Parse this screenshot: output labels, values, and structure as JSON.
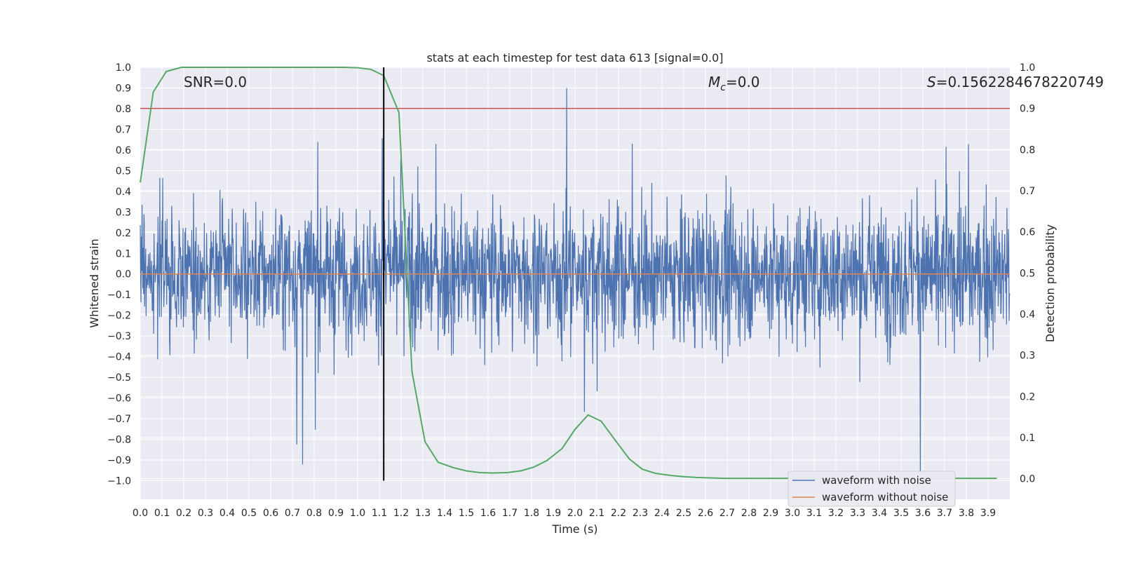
{
  "chart_data": {
    "type": "line",
    "title": "stats at each timestep for test data 613 [signal=0.0]",
    "xlabel": "Time (s)",
    "ylabel_left": "Whitened strain",
    "ylabel_right": "Detection probability",
    "xlim": [
      0.0,
      4.0
    ],
    "ylim_left": [
      -1.09,
      1.0
    ],
    "ylim_right": [
      -0.05,
      1.0
    ],
    "x_ticks": [
      "0.0",
      "0.1",
      "0.2",
      "0.3",
      "0.4",
      "0.5",
      "0.6",
      "0.7",
      "0.8",
      "0.9",
      "1.0",
      "1.1",
      "1.2",
      "1.3",
      "1.4",
      "1.5",
      "1.6",
      "1.7",
      "1.8",
      "1.9",
      "2.0",
      "2.1",
      "2.2",
      "2.3",
      "2.4",
      "2.5",
      "2.6",
      "2.7",
      "2.8",
      "2.9",
      "3.0",
      "3.1",
      "3.2",
      "3.3",
      "3.4",
      "3.5",
      "3.6",
      "3.7",
      "3.8",
      "3.9"
    ],
    "y_ticks_left": [
      "1.0",
      "0.9",
      "0.8",
      "0.7",
      "0.6",
      "0.5",
      "0.4",
      "0.3",
      "0.2",
      "0.1",
      "0.0",
      "−0.1",
      "−0.2",
      "−0.3",
      "−0.4",
      "−0.5",
      "−0.6",
      "−0.7",
      "−0.8",
      "−0.9",
      "−1.0"
    ],
    "y_ticks_right": [
      "1.0",
      "0.9",
      "0.8",
      "0.7",
      "0.6",
      "0.5",
      "0.4",
      "0.3",
      "0.2",
      "0.1",
      "0.0"
    ],
    "annotations": {
      "snr": "SNR=0.0",
      "mc_symbol": "M",
      "mc_sub": "c",
      "mc_value": "=0.0",
      "s_symbol": "S",
      "s_value": "=0.1562284678220749"
    },
    "vertical_line_x": 1.12,
    "threshold_probability": 0.9,
    "series": [
      {
        "name": "waveform with noise",
        "color": "#4c72b0",
        "axis": "left",
        "description": "whitened noisy strain sampled across 0-4 s, amplitude roughly within -1.0..0.9"
      },
      {
        "name": "waveform without noise",
        "color": "#dd8452",
        "axis": "left",
        "values_const": 0.0
      },
      {
        "name": "detection probability",
        "color": "#55a868",
        "axis": "right",
        "x": [
          0.0,
          0.06,
          0.12,
          0.19,
          0.25,
          0.31,
          0.37,
          0.44,
          0.5,
          0.56,
          0.62,
          0.69,
          0.75,
          0.81,
          0.87,
          0.94,
          1.0,
          1.06,
          1.12,
          1.19,
          1.25,
          1.31,
          1.37,
          1.44,
          1.5,
          1.56,
          1.62,
          1.69,
          1.75,
          1.81,
          1.87,
          1.94,
          2.0,
          2.06,
          2.12,
          2.19,
          2.25,
          2.31,
          2.37,
          2.44,
          2.5,
          2.56,
          2.62,
          2.69,
          2.75,
          2.81,
          2.87,
          2.94,
          3.0,
          3.06,
          3.12,
          3.19,
          3.25,
          3.31,
          3.37,
          3.44,
          3.5,
          3.56,
          3.62,
          3.69,
          3.75,
          3.81,
          3.87,
          3.94
        ],
        "y": [
          0.72,
          0.94,
          0.99,
          1.0,
          1.0,
          1.0,
          1.0,
          1.0,
          1.0,
          1.0,
          1.0,
          1.0,
          1.0,
          1.0,
          1.0,
          1.0,
          0.999,
          0.995,
          0.98,
          0.89,
          0.26,
          0.09,
          0.04,
          0.027,
          0.019,
          0.015,
          0.014,
          0.015,
          0.019,
          0.028,
          0.044,
          0.073,
          0.12,
          0.155,
          0.14,
          0.09,
          0.048,
          0.023,
          0.013,
          0.008,
          0.005,
          0.003,
          0.002,
          0.001,
          0.001,
          0.001,
          0.001,
          0.001,
          0.001,
          0.001,
          0.001,
          0.001,
          0.001,
          0.001,
          0.001,
          0.001,
          0.001,
          0.001,
          0.001,
          0.001,
          0.001,
          0.001,
          0.001,
          0.001
        ]
      }
    ],
    "legend": {
      "position": "lower-right",
      "entries": [
        {
          "label": "waveform with noise",
          "color": "#4c72b0"
        },
        {
          "label": "waveform without noise",
          "color": "#dd8452"
        }
      ]
    },
    "colors": {
      "plot_bg": "#eaeaf2",
      "grid": "#ffffff",
      "threshold": "#c44e52",
      "vline": "#000000"
    }
  }
}
